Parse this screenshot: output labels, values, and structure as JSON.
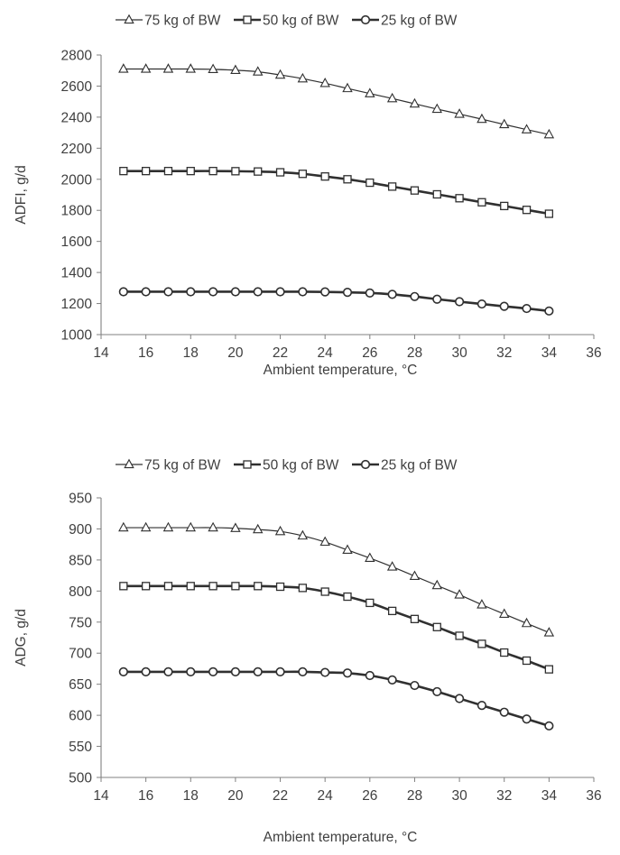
{
  "legend_labels": [
    "75 kg of BW",
    "50 kg of BW",
    "25 kg of BW"
  ],
  "chart_data": [
    {
      "type": "line",
      "title": "",
      "xlabel": "Ambient temperature, °C",
      "ylabel": "ADFI, g/d",
      "xlim": [
        14,
        36
      ],
      "ylim": [
        1000,
        2800
      ],
      "xticks": [
        14,
        16,
        18,
        20,
        22,
        24,
        26,
        28,
        30,
        32,
        34,
        36
      ],
      "yticks": [
        1000,
        1200,
        1400,
        1600,
        1800,
        2000,
        2200,
        2400,
        2600,
        2800
      ],
      "legend_position": "top",
      "grid": false,
      "x": [
        15,
        16,
        17,
        18,
        19,
        20,
        21,
        22,
        23,
        24,
        25,
        26,
        27,
        28,
        29,
        30,
        31,
        32,
        33,
        34
      ],
      "series": [
        {
          "name": "75 kg of BW",
          "marker": "triangle",
          "line_width": "thin",
          "values": [
            2710,
            2710,
            2710,
            2710,
            2708,
            2702,
            2692,
            2672,
            2648,
            2618,
            2585,
            2552,
            2520,
            2486,
            2452,
            2420,
            2387,
            2353,
            2320,
            2288
          ]
        },
        {
          "name": "50 kg of BW",
          "marker": "square",
          "line_width": "thick",
          "values": [
            2053,
            2053,
            2053,
            2053,
            2053,
            2052,
            2050,
            2045,
            2035,
            2018,
            2000,
            1978,
            1953,
            1928,
            1903,
            1878,
            1852,
            1828,
            1803,
            1778
          ]
        },
        {
          "name": "25 kg of BW",
          "marker": "circle",
          "line_width": "thick",
          "values": [
            1276,
            1276,
            1276,
            1276,
            1276,
            1276,
            1276,
            1276,
            1276,
            1275,
            1272,
            1268,
            1259,
            1245,
            1228,
            1212,
            1197,
            1182,
            1168,
            1152
          ]
        }
      ]
    },
    {
      "type": "line",
      "title": "",
      "xlabel": "Ambient temperature, °C",
      "ylabel": "ADG, g/d",
      "xlim": [
        14,
        36
      ],
      "ylim": [
        500,
        950
      ],
      "xticks": [
        14,
        16,
        18,
        20,
        22,
        24,
        26,
        28,
        30,
        32,
        34,
        36
      ],
      "yticks": [
        500,
        550,
        600,
        650,
        700,
        750,
        800,
        850,
        900,
        950
      ],
      "legend_position": "top",
      "grid": false,
      "x": [
        15,
        16,
        17,
        18,
        19,
        20,
        21,
        22,
        23,
        24,
        25,
        26,
        27,
        28,
        29,
        30,
        31,
        32,
        33,
        34
      ],
      "series": [
        {
          "name": "75 kg of BW",
          "marker": "triangle",
          "line_width": "thin",
          "values": [
            902,
            902,
            902,
            902,
            902,
            901,
            899,
            896,
            889,
            879,
            866,
            853,
            839,
            824,
            809,
            794,
            778,
            763,
            748,
            733
          ]
        },
        {
          "name": "50 kg of BW",
          "marker": "square",
          "line_width": "thick",
          "values": [
            808,
            808,
            808,
            808,
            808,
            808,
            808,
            807,
            805,
            799,
            791,
            781,
            768,
            755,
            742,
            728,
            715,
            701,
            688,
            674
          ]
        },
        {
          "name": "25 kg of BW",
          "marker": "circle",
          "line_width": "thick",
          "values": [
            670,
            670,
            670,
            670,
            670,
            670,
            670,
            670,
            670,
            669,
            668,
            664,
            657,
            648,
            638,
            627,
            616,
            605,
            594,
            583
          ]
        }
      ]
    }
  ]
}
